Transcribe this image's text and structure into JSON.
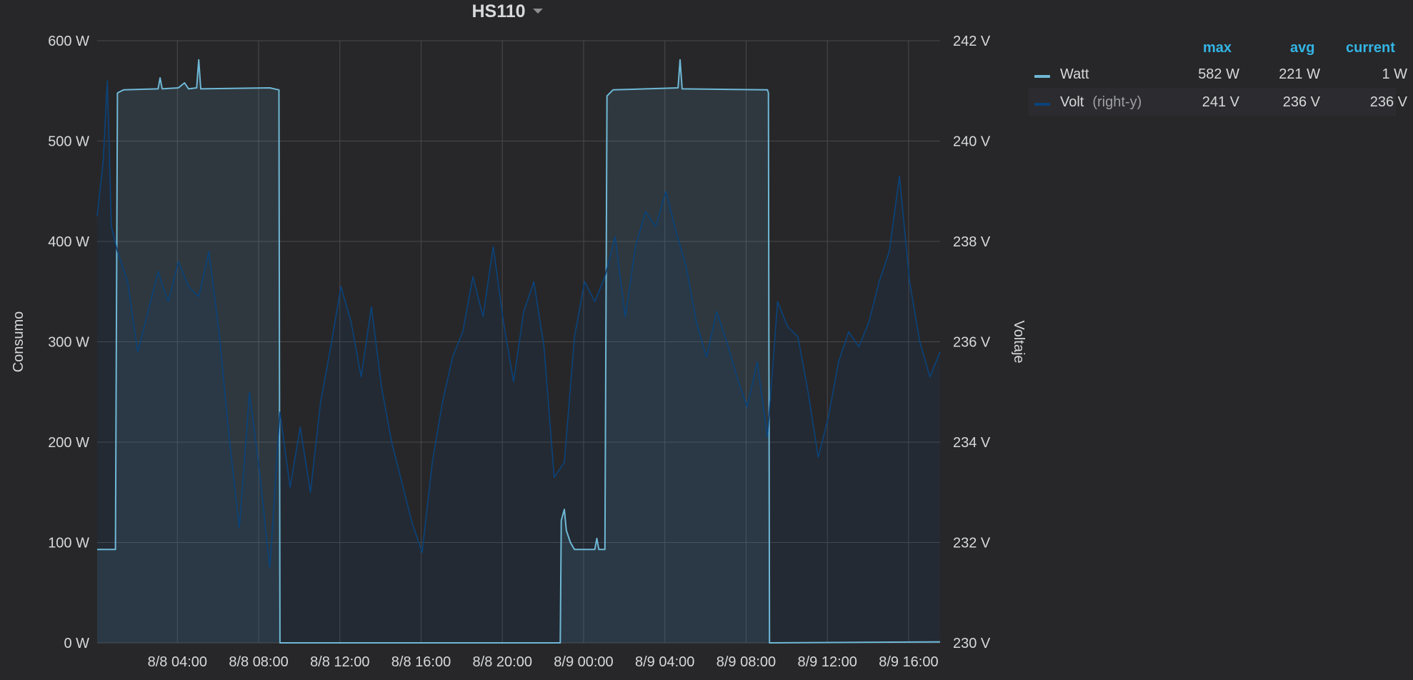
{
  "panel": {
    "title": "HS110"
  },
  "legend": {
    "headers": {
      "max": "max",
      "avg": "avg",
      "current": "current"
    },
    "series": [
      {
        "name": "Watt",
        "sub": "",
        "max": "582 W",
        "avg": "221 W",
        "current": "1 W",
        "color": "#6fb8d6"
      },
      {
        "name": "Volt",
        "sub": "(right-y)",
        "max": "241 V",
        "avg": "236 V",
        "current": "236 V",
        "color": "#0a437c"
      }
    ]
  },
  "chart_data": {
    "type": "line",
    "title": "HS110",
    "x_tick_labels": [
      "8/8 04:00",
      "8/8 08:00",
      "8/8 12:00",
      "8/8 16:00",
      "8/8 20:00",
      "8/9 00:00",
      "8/9 04:00",
      "8/9 08:00",
      "8/9 12:00",
      "8/9 16:00"
    ],
    "x_range_hours": [
      0,
      41.5
    ],
    "x_tick_hours": [
      3.95,
      7.95,
      11.95,
      15.95,
      19.95,
      23.95,
      27.95,
      31.95,
      35.95,
      39.95
    ],
    "y_left": {
      "label": "Consumo",
      "unit": "W",
      "range": [
        0,
        600
      ],
      "ticks": [
        "0 W",
        "100 W",
        "200 W",
        "300 W",
        "400 W",
        "500 W",
        "600 W"
      ]
    },
    "y_right": {
      "label": "Voltaje",
      "unit": "V",
      "range": [
        230,
        242
      ],
      "ticks": [
        "230 V",
        "232 V",
        "234 V",
        "236 V",
        "238 V",
        "240 V",
        "242 V"
      ]
    },
    "grid": true,
    "series": [
      {
        "name": "Watt",
        "axis": "left",
        "color": "#6fb8d6",
        "fill": true,
        "points": [
          [
            0,
            93
          ],
          [
            0.9,
            93
          ],
          [
            1.0,
            548
          ],
          [
            1.3,
            551
          ],
          [
            3.0,
            552
          ],
          [
            3.1,
            563
          ],
          [
            3.2,
            552
          ],
          [
            4.0,
            553
          ],
          [
            4.3,
            558
          ],
          [
            4.5,
            552
          ],
          [
            4.9,
            553
          ],
          [
            5.0,
            581
          ],
          [
            5.1,
            552
          ],
          [
            8.5,
            553
          ],
          [
            8.95,
            551
          ],
          [
            9.0,
            0
          ],
          [
            22.8,
            0
          ],
          [
            22.85,
            122
          ],
          [
            23.0,
            133
          ],
          [
            23.1,
            112
          ],
          [
            23.3,
            100
          ],
          [
            23.5,
            93
          ],
          [
            24.5,
            93
          ],
          [
            24.6,
            104
          ],
          [
            24.7,
            93
          ],
          [
            25.0,
            93
          ],
          [
            25.1,
            545
          ],
          [
            25.4,
            551
          ],
          [
            28.6,
            553
          ],
          [
            28.7,
            581
          ],
          [
            28.8,
            552
          ],
          [
            33.0,
            551
          ],
          [
            33.05,
            548
          ],
          [
            33.1,
            0
          ],
          [
            41.5,
            1
          ]
        ]
      },
      {
        "name": "Volt",
        "axis": "right",
        "color": "#0a437c",
        "fill": true,
        "points": [
          [
            0,
            238.5
          ],
          [
            0.3,
            239.6
          ],
          [
            0.5,
            241.2
          ],
          [
            0.7,
            238.3
          ],
          [
            1.0,
            237.8
          ],
          [
            1.5,
            237.2
          ],
          [
            2.0,
            235.8
          ],
          [
            2.5,
            236.6
          ],
          [
            3.0,
            237.4
          ],
          [
            3.5,
            236.8
          ],
          [
            4.0,
            237.6
          ],
          [
            4.5,
            237.1
          ],
          [
            5.0,
            236.9
          ],
          [
            5.5,
            237.8
          ],
          [
            6.0,
            236.2
          ],
          [
            6.5,
            234.1
          ],
          [
            7.0,
            232.3
          ],
          [
            7.5,
            235.0
          ],
          [
            8.0,
            233.4
          ],
          [
            8.5,
            231.5
          ],
          [
            9.0,
            234.6
          ],
          [
            9.5,
            233.1
          ],
          [
            10.0,
            234.3
          ],
          [
            10.5,
            233.0
          ],
          [
            11.0,
            234.8
          ],
          [
            11.5,
            235.9
          ],
          [
            12.0,
            237.1
          ],
          [
            12.5,
            236.4
          ],
          [
            13.0,
            235.3
          ],
          [
            13.5,
            236.7
          ],
          [
            14.0,
            235.1
          ],
          [
            14.5,
            234.0
          ],
          [
            15.0,
            233.2
          ],
          [
            15.5,
            232.4
          ],
          [
            16.0,
            231.8
          ],
          [
            16.5,
            233.6
          ],
          [
            17.0,
            234.8
          ],
          [
            17.5,
            235.7
          ],
          [
            18.0,
            236.2
          ],
          [
            18.5,
            237.3
          ],
          [
            19.0,
            236.5
          ],
          [
            19.5,
            237.9
          ],
          [
            20.0,
            236.4
          ],
          [
            20.5,
            235.2
          ],
          [
            21.0,
            236.6
          ],
          [
            21.5,
            237.2
          ],
          [
            22.0,
            235.9
          ],
          [
            22.5,
            233.3
          ],
          [
            23.0,
            233.6
          ],
          [
            23.5,
            236.1
          ],
          [
            24.0,
            237.2
          ],
          [
            24.5,
            236.8
          ],
          [
            25.0,
            237.3
          ],
          [
            25.5,
            238.1
          ],
          [
            26.0,
            236.5
          ],
          [
            26.5,
            237.9
          ],
          [
            27.0,
            238.6
          ],
          [
            27.5,
            238.3
          ],
          [
            28.0,
            239.0
          ],
          [
            28.5,
            238.2
          ],
          [
            29.0,
            237.5
          ],
          [
            29.5,
            236.4
          ],
          [
            30.0,
            235.7
          ],
          [
            30.5,
            236.6
          ],
          [
            31.0,
            236.0
          ],
          [
            31.5,
            235.3
          ],
          [
            32.0,
            234.7
          ],
          [
            32.5,
            235.6
          ],
          [
            33.0,
            234.1
          ],
          [
            33.5,
            236.8
          ],
          [
            34.0,
            236.3
          ],
          [
            34.5,
            236.1
          ],
          [
            35.0,
            235.0
          ],
          [
            35.5,
            233.7
          ],
          [
            36.0,
            234.5
          ],
          [
            36.5,
            235.6
          ],
          [
            37.0,
            236.2
          ],
          [
            37.5,
            235.9
          ],
          [
            38.0,
            236.4
          ],
          [
            38.5,
            237.2
          ],
          [
            39.0,
            237.8
          ],
          [
            39.5,
            239.3
          ],
          [
            40.0,
            237.2
          ],
          [
            40.5,
            236.0
          ],
          [
            41.0,
            235.3
          ],
          [
            41.5,
            235.8
          ]
        ]
      }
    ]
  }
}
